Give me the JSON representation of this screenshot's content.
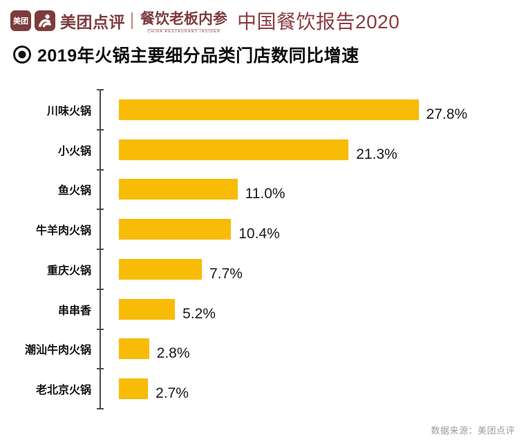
{
  "header": {
    "meituan_logo_text": "美团",
    "brand_name": "美团点评",
    "partner_name": "餐饮老板内参",
    "partner_subtitle": "CHINA RESTAURANT INSIDER",
    "report_title": "中国餐饮报告2020"
  },
  "section_title": "2019年火锅主要细分品类门店数同比增速",
  "source": "数据来源：美团点评",
  "colors": {
    "bar": "#f8bb06",
    "brand_maroon": "#7d3b3c",
    "report_title_red": "#8b3b41",
    "axis": "#4c4c4c",
    "source_gray": "#9b9b9b"
  },
  "icons": {
    "bullet": "radio-bullet-icon",
    "kangaroo": "dianping-kangaroo-icon"
  },
  "chart_data": {
    "type": "bar",
    "orientation": "horizontal",
    "title": "2019年火锅主要细分品类门店数同比增速",
    "categories": [
      "川味火锅",
      "小火锅",
      "鱼火锅",
      "牛羊肉火锅",
      "重庆火锅",
      "串串香",
      "潮汕牛肉火锅",
      "老北京火锅"
    ],
    "values": [
      27.8,
      21.3,
      11.0,
      10.4,
      7.7,
      5.2,
      2.8,
      2.7
    ],
    "data_labels": [
      "27.8%",
      "21.3%",
      "11.0%",
      "10.4%",
      "7.7%",
      "5.2%",
      "2.8%",
      "2.7%"
    ],
    "xlabel": "",
    "ylabel": "",
    "xlim": [
      0,
      30
    ],
    "grid": false,
    "legend": false,
    "bar_color": "#f8bb06"
  }
}
